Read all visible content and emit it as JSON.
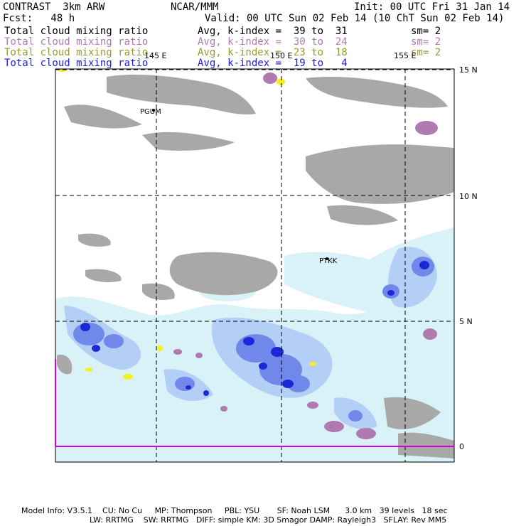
{
  "header": {
    "left_line1": "CONTRAST  3km ARW",
    "center_line1": "NCAR/MMM",
    "right_line1": "Init: 00 UTC Fri 31 Jan 14",
    "left_line2": "Fcst:   48 h",
    "right_line2": "Valid: 00 UTC Sun 02 Feb 14 (10 ChT Sun 02 Feb 14)"
  },
  "legend": [
    {
      "field": "Total cloud mixing ratio",
      "kindex": "Avg, k-index =  39 to  31",
      "sm": "sm= 2",
      "color": "#000000"
    },
    {
      "field": "Total cloud mixing ratio",
      "kindex": "Avg, k-index =  30 to  24",
      "sm": "sm= 2",
      "color": "#b07ab0"
    },
    {
      "field": "Total cloud mixing ratio",
      "kindex": "Avg, k-index =  23 to  18",
      "sm": "sm= 2",
      "color": "#999933"
    },
    {
      "field": "Total cloud mixing ratio",
      "kindex": "Avg, k-index =  19 to   4",
      "sm": "",
      "color": "#1a1ae6"
    }
  ],
  "axes": {
    "lon_labels": [
      "145 E",
      "150 E",
      "155 E"
    ],
    "lat_labels": [
      "15 N",
      "10 N",
      "5 N",
      "0"
    ]
  },
  "stations": [
    "PGUM",
    "PTKK"
  ],
  "footer": {
    "line1": "Model Info: V3.5.1    CU: No Cu     MP: Thompson     PBL: YSU       SF: Noah LSM      3.0 km   39 levels   18 sec",
    "line2": "LW: RRTMG    SW: RRTMG   DIFF: simple KM: 3D Smagor DAMP: Rayleigh3   SFLAY: Rev MM5"
  },
  "colors": {
    "gray_cloud": "#a8a8a8",
    "light_cyan": "#d8f2f8",
    "light_blue": "#b4cff5",
    "mid_blue": "#6f88ea",
    "deep_blue": "#1c28d6",
    "purple": "#b07ab0",
    "yellow": "#f4f020",
    "equator_line": "#d400d4"
  }
}
